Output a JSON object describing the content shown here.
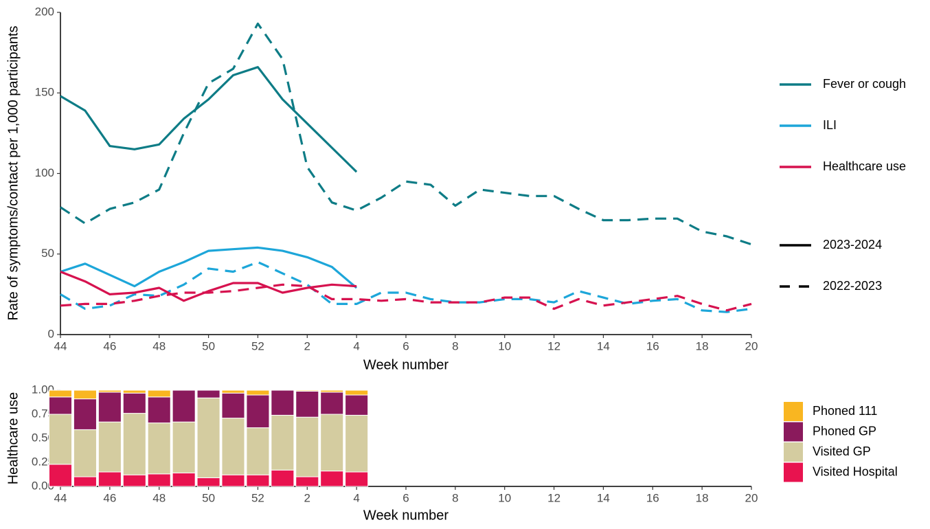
{
  "chart_data": [
    {
      "type": "line",
      "y_label": "Rate of symptoms/contact per 1,000 participants",
      "x_label": "Week number",
      "categories": [
        44,
        null,
        46,
        null,
        48,
        null,
        50,
        null,
        52,
        null,
        2,
        null,
        4,
        null,
        6,
        null,
        8,
        null,
        10,
        null,
        12,
        null,
        14,
        null,
        16,
        null,
        18,
        null,
        20
      ],
      "ylim": [
        0,
        200
      ],
      "yticks": [
        0,
        50,
        100,
        150,
        200
      ],
      "series": [
        {
          "color": "#0e7c86",
          "linetype": "solid",
          "values": [
            148,
            139,
            117,
            115,
            118,
            134,
            146,
            161,
            166,
            146,
            131,
            116,
            101,
            null,
            null,
            null,
            null,
            null,
            null,
            null,
            null,
            null,
            null,
            null,
            null,
            null,
            null,
            null,
            null
          ]
        },
        {
          "color": "#0e7c86",
          "linetype": "dashed",
          "values": [
            79,
            69,
            78,
            82,
            90,
            125,
            156,
            165,
            193,
            171,
            104,
            82,
            77,
            85,
            95,
            93,
            80,
            90,
            88,
            86,
            86,
            78,
            71,
            71,
            72,
            72,
            64,
            61,
            56
          ]
        },
        {
          "color": "#1da6d9",
          "linetype": "solid",
          "values": [
            39,
            44,
            37,
            30,
            39,
            45,
            52,
            53,
            54,
            52,
            48,
            42,
            29,
            null,
            null,
            null,
            null,
            null,
            null,
            null,
            null,
            null,
            null,
            null,
            null,
            null,
            null,
            null,
            null
          ]
        },
        {
          "color": "#1da6d9",
          "linetype": "dashed",
          "values": [
            25,
            16,
            18,
            25,
            24,
            31,
            41,
            39,
            45,
            38,
            31,
            19,
            19,
            26,
            26,
            22,
            20,
            20,
            22,
            22,
            20,
            27,
            23,
            19,
            21,
            22,
            15,
            14,
            16
          ]
        },
        {
          "color": "#d6124f",
          "linetype": "solid",
          "values": [
            39,
            33,
            25,
            26,
            29,
            21,
            27,
            32,
            32,
            26,
            29,
            31,
            30,
            null,
            null,
            null,
            null,
            null,
            null,
            null,
            null,
            null,
            null,
            null,
            null,
            null,
            null,
            null,
            null
          ]
        },
        {
          "color": "#d6124f",
          "linetype": "dashed",
          "values": [
            18,
            19,
            19,
            21,
            24,
            26,
            26,
            27,
            29,
            31,
            30,
            22,
            22,
            21,
            22,
            20,
            20,
            20,
            23,
            23,
            16,
            22,
            18,
            20,
            22,
            24,
            19,
            15,
            19
          ]
        }
      ],
      "color_legend": [
        {
          "name": "Fever or cough",
          "color": "#0e7c86"
        },
        {
          "name": "ILI",
          "color": "#1da6d9"
        },
        {
          "name": "Healthcare use",
          "color": "#d6124f"
        }
      ],
      "linetype_legend": [
        {
          "name": "2023-2024",
          "linetype": "solid"
        },
        {
          "name": "2022-2023",
          "linetype": "dashed"
        }
      ]
    },
    {
      "type": "bar",
      "stacked": true,
      "y_label": "Healthcare use",
      "x_label": "Week number",
      "categories": [
        44,
        null,
        46,
        null,
        48,
        null,
        50,
        null,
        52,
        null,
        2,
        null,
        4,
        null,
        6,
        null,
        8,
        null,
        10,
        null,
        12,
        null,
        14,
        null,
        16,
        null,
        18,
        null,
        20
      ],
      "ylim": [
        0,
        1
      ],
      "yticks": [
        {
          "value": 0,
          "label": "0.00"
        },
        {
          "value": 0.25,
          "label": "0.25"
        },
        {
          "value": 0.5,
          "label": "0.50"
        },
        {
          "value": 0.75,
          "label": "0.75"
        },
        {
          "value": 1,
          "label": "1.00"
        }
      ],
      "series": [
        {
          "name": "Visited Hospital",
          "color": "#e8134f",
          "values": [
            0.23,
            0.1,
            0.15,
            0.12,
            0.13,
            0.14,
            0.09,
            0.12,
            0.12,
            0.17,
            0.1,
            0.16,
            0.15,
            null,
            null,
            null,
            null,
            null,
            null,
            null,
            null,
            null,
            null,
            null,
            null,
            null,
            null,
            null,
            null
          ]
        },
        {
          "name": "Visited GP",
          "color": "#d4cca0",
          "values": [
            0.52,
            0.49,
            0.52,
            0.64,
            0.53,
            0.53,
            0.83,
            0.59,
            0.49,
            0.57,
            0.62,
            0.59,
            0.59,
            null,
            null,
            null,
            null,
            null,
            null,
            null,
            null,
            null,
            null,
            null,
            null,
            null,
            null,
            null,
            null
          ]
        },
        {
          "name": "Phoned GP",
          "color": "#8a1a5c",
          "values": [
            0.18,
            0.32,
            0.31,
            0.21,
            0.27,
            0.33,
            0.08,
            0.26,
            0.34,
            0.26,
            0.27,
            0.23,
            0.21,
            null,
            null,
            null,
            null,
            null,
            null,
            null,
            null,
            null,
            null,
            null,
            null,
            null,
            null,
            null,
            null
          ]
        },
        {
          "name": "Phoned 111",
          "color": "#f9b621",
          "values": [
            0.07,
            0.09,
            0.02,
            0.03,
            0.07,
            0,
            0,
            0.03,
            0.05,
            0,
            0.01,
            0.02,
            0.05,
            null,
            null,
            null,
            null,
            null,
            null,
            null,
            null,
            null,
            null,
            null,
            null,
            null,
            null,
            null,
            null
          ]
        }
      ]
    }
  ]
}
